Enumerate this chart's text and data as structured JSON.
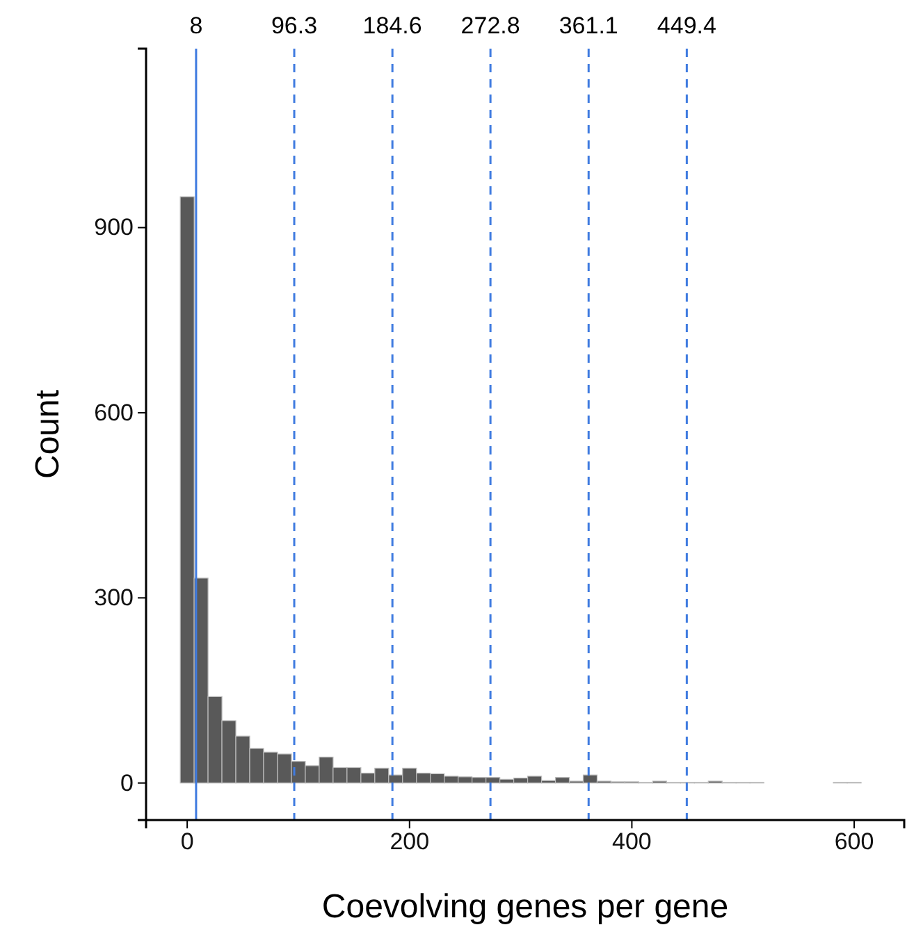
{
  "chart_data": {
    "type": "histogram",
    "xlabel": "Coevolving genes per gene",
    "ylabel": "Count",
    "bins": [
      -6.25,
      6.25,
      18.75,
      31.25,
      43.75,
      56.25,
      68.75,
      81.25,
      93.75,
      106.25,
      118.75,
      131.25,
      143.75,
      156.25,
      168.75,
      181.25,
      193.75,
      206.25,
      218.75,
      231.25,
      243.75,
      256.25,
      268.75,
      281.25,
      293.75,
      306.25,
      318.75,
      331.25,
      343.75,
      356.25,
      368.75,
      381.25,
      393.75,
      406.25,
      418.75,
      431.25,
      443.75,
      456.25,
      468.75,
      481.25,
      493.75,
      506.25,
      518.75,
      531.25,
      543.75,
      556.25,
      568.75,
      581.25,
      593.75,
      606.25
    ],
    "values": [
      950,
      332,
      140,
      101,
      76,
      56,
      50,
      47,
      35,
      28,
      42,
      25,
      25,
      16,
      24,
      13,
      24,
      16,
      15,
      11,
      10,
      9,
      9,
      6,
      8,
      11,
      4,
      9,
      3,
      13,
      3,
      2,
      2,
      1,
      3,
      1,
      1,
      1,
      3,
      1,
      1,
      1,
      0,
      0,
      0,
      0,
      0,
      1,
      1
    ],
    "color": "#595959",
    "xlim": [
      -37,
      645
    ],
    "ylim": [
      -60,
      1190
    ],
    "xticks": [
      0,
      200,
      400,
      600
    ],
    "yticks": [
      0,
      300,
      600,
      900
    ],
    "grid": false,
    "ref_lines": [
      {
        "axis": "x",
        "value": 8,
        "label": "8",
        "color": "#3f7be0",
        "line_style": "solid"
      },
      {
        "axis": "x",
        "value": 96.3,
        "label": "96.3",
        "color": "#3f7be0",
        "line_style": "dashed"
      },
      {
        "axis": "x",
        "value": 184.6,
        "label": "184.6",
        "color": "#3f7be0",
        "line_style": "dashed"
      },
      {
        "axis": "x",
        "value": 272.8,
        "label": "272.8",
        "color": "#3f7be0",
        "line_style": "dashed"
      },
      {
        "axis": "x",
        "value": 361.1,
        "label": "361.1",
        "color": "#3f7be0",
        "line_style": "dashed"
      },
      {
        "axis": "x",
        "value": 449.4,
        "label": "449.4",
        "color": "#3f7be0",
        "line_style": "dashed"
      }
    ]
  }
}
